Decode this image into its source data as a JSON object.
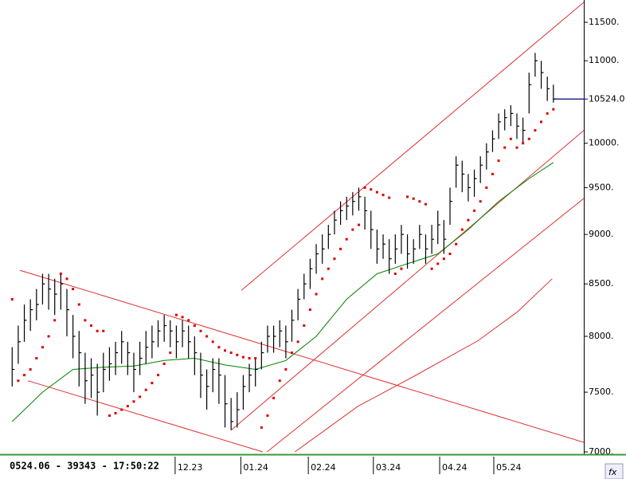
{
  "chart_data": {
    "type": "ohlc",
    "log": true,
    "ylim": [
      7000,
      11800
    ],
    "yticks": [
      {
        "value": 7000,
        "label": "7000."
      },
      {
        "value": 7500,
        "label": "7500."
      },
      {
        "value": 8000,
        "label": "8000."
      },
      {
        "value": 8500,
        "label": "8500."
      },
      {
        "value": 9000,
        "label": "9000."
      },
      {
        "value": 9500,
        "label": "9500."
      },
      {
        "value": 10000,
        "label": "10000."
      },
      {
        "value": 11000,
        "label": "11000."
      },
      {
        "value": 11500,
        "label": "11500."
      }
    ],
    "xlim": [
      -2,
      94
    ],
    "xticks": [
      {
        "value": 26.8,
        "label": "12.23"
      },
      {
        "value": 37.6,
        "label": "01.24"
      },
      {
        "value": 48.7,
        "label": "02.24"
      },
      {
        "value": 59.4,
        "label": "03.24"
      },
      {
        "value": 70.3,
        "label": "04.24"
      },
      {
        "value": 79.2,
        "label": "05.24"
      }
    ],
    "bars": {
      "color": "#000000",
      "high": [
        7900,
        8100,
        8300,
        8350,
        8450,
        8600,
        8600,
        8550,
        8600,
        8450,
        8200,
        8050,
        7850,
        7800,
        7750,
        7850,
        7900,
        7950,
        8050,
        7950,
        7850,
        7950,
        8050,
        8100,
        8150,
        8200,
        8150,
        8100,
        8150,
        8100,
        8000,
        7850,
        7700,
        7800,
        7800,
        7650,
        7450,
        7500,
        7650,
        7750,
        7800,
        7950,
        8100,
        8100,
        8150,
        8100,
        8250,
        8450,
        8600,
        8750,
        8900,
        9000,
        9100,
        9250,
        9350,
        9400,
        9450,
        9500,
        9400,
        9250,
        9050,
        9000,
        8950,
        9000,
        9100,
        9000,
        8950,
        9100,
        9000,
        9100,
        9250,
        9150,
        9500,
        9850,
        9800,
        9650,
        9700,
        9850,
        10000,
        10150,
        10350,
        10400,
        10450,
        10350,
        10300,
        10850,
        11100,
        11000,
        10800,
        10700
      ],
      "low": [
        7550,
        7750,
        7950,
        8050,
        8150,
        8300,
        8250,
        8200,
        8250,
        8000,
        7800,
        7550,
        7400,
        7450,
        7300,
        7500,
        7600,
        7650,
        7750,
        7650,
        7500,
        7650,
        7750,
        7800,
        7900,
        7950,
        7900,
        7800,
        7900,
        7800,
        7650,
        7450,
        7350,
        7500,
        7400,
        7200,
        7180,
        7200,
        7350,
        7500,
        7550,
        7700,
        7850,
        7850,
        7900,
        7800,
        7950,
        8150,
        8350,
        8450,
        8600,
        8700,
        8850,
        9000,
        9100,
        9150,
        9200,
        9250,
        9050,
        8850,
        8700,
        8750,
        8600,
        8700,
        8800,
        8650,
        8700,
        8850,
        8700,
        8800,
        8900,
        8800,
        9100,
        9500,
        9450,
        9350,
        9400,
        9550,
        9700,
        9900,
        10050,
        10150,
        10200,
        10050,
        10000,
        10350,
        10800,
        10650,
        10500,
        10480
      ],
      "close": [
        7700,
        7950,
        8150,
        8250,
        8300,
        8500,
        8450,
        8400,
        8500,
        8250,
        8000,
        7850,
        7600,
        7650,
        7500,
        7700,
        7750,
        7850,
        7950,
        7850,
        7700,
        7800,
        7900,
        7950,
        8050,
        8100,
        8050,
        7950,
        8050,
        7950,
        7850,
        7650,
        7550,
        7700,
        7650,
        7400,
        7250,
        7350,
        7550,
        7650,
        7700,
        7850,
        8000,
        8000,
        8050,
        7950,
        8150,
        8350,
        8500,
        8650,
        8800,
        8850,
        9000,
        9150,
        9250,
        9300,
        9350,
        9400,
        9250,
        9050,
        8850,
        8900,
        8750,
        8850,
        9000,
        8800,
        8850,
        9000,
        8850,
        8950,
        9100,
        8950,
        9350,
        9750,
        9650,
        9500,
        9600,
        9750,
        9900,
        10050,
        10250,
        10300,
        10350,
        10200,
        10150,
        10700,
        11000,
        10850,
        10650,
        10524
      ]
    },
    "sar": {
      "color": "#dd0000",
      "values": [
        8350,
        7600,
        7650,
        7700,
        7800,
        7900,
        8000,
        8150,
        8600,
        8550,
        8450,
        8300,
        8150,
        8100,
        8050,
        8050,
        7300,
        7320,
        7350,
        7380,
        7420,
        7460,
        7520,
        7580,
        7650,
        7750,
        7850,
        8200,
        8180,
        8150,
        8100,
        8050,
        8000,
        7950,
        7900,
        7870,
        7850,
        7830,
        7810,
        7800,
        7800,
        7200,
        7300,
        7450,
        7600,
        7700,
        7850,
        7950,
        8100,
        8250,
        8400,
        8550,
        8650,
        8750,
        8850,
        8950,
        9050,
        9100,
        9500,
        9480,
        9450,
        9420,
        9390,
        8600,
        8650,
        9400,
        9380,
        9350,
        9320,
        8650,
        8700,
        8750,
        8800,
        8900,
        9050,
        9150,
        9250,
        9350,
        9500,
        9650,
        9800,
        9950,
        10050,
        9950,
        10000,
        10050,
        10150,
        10250,
        10350,
        10400
      ]
    },
    "ma": {
      "color": "#008000",
      "x": [
        0,
        5,
        10,
        15,
        20,
        25,
        30,
        35,
        40,
        45,
        50,
        55,
        60,
        65,
        70,
        75,
        80,
        85,
        89
      ],
      "values": [
        7250,
        7500,
        7700,
        7720,
        7730,
        7780,
        7800,
        7740,
        7700,
        7780,
        8000,
        8350,
        8600,
        8700,
        8800,
        9050,
        9350,
        9600,
        9780
      ]
    },
    "lines": [
      {
        "color": "#e03030",
        "x": [
          37.7,
          94
        ],
        "values": [
          8437,
          11768
        ]
      },
      {
        "color": "#e03030",
        "x": [
          36.0,
          94
        ],
        "values": [
          7177,
          10150
        ]
      },
      {
        "color": "#e03030",
        "x": [
          41.9,
          94
        ],
        "values": [
          7000,
          9382
        ]
      },
      {
        "color": "#e03030",
        "x": [
          1.27,
          94
        ],
        "values": [
          8635,
          7078
        ]
      },
      {
        "color": "#e03030",
        "x": [
          2.58,
          41.2
        ],
        "values": [
          7600,
          7000
        ]
      },
      {
        "color": "#e03030",
        "x": [
          46.5,
          56.9,
          66.1,
          76.6,
          83.1,
          88.8
        ],
        "values": [
          7000,
          7380,
          7640,
          7960,
          8230,
          8550
        ]
      }
    ],
    "last_price": {
      "value": 10524,
      "label": "10524.0",
      "color": "#000080"
    },
    "footer": "0524.06 - 39343 - 17:50:22"
  }
}
